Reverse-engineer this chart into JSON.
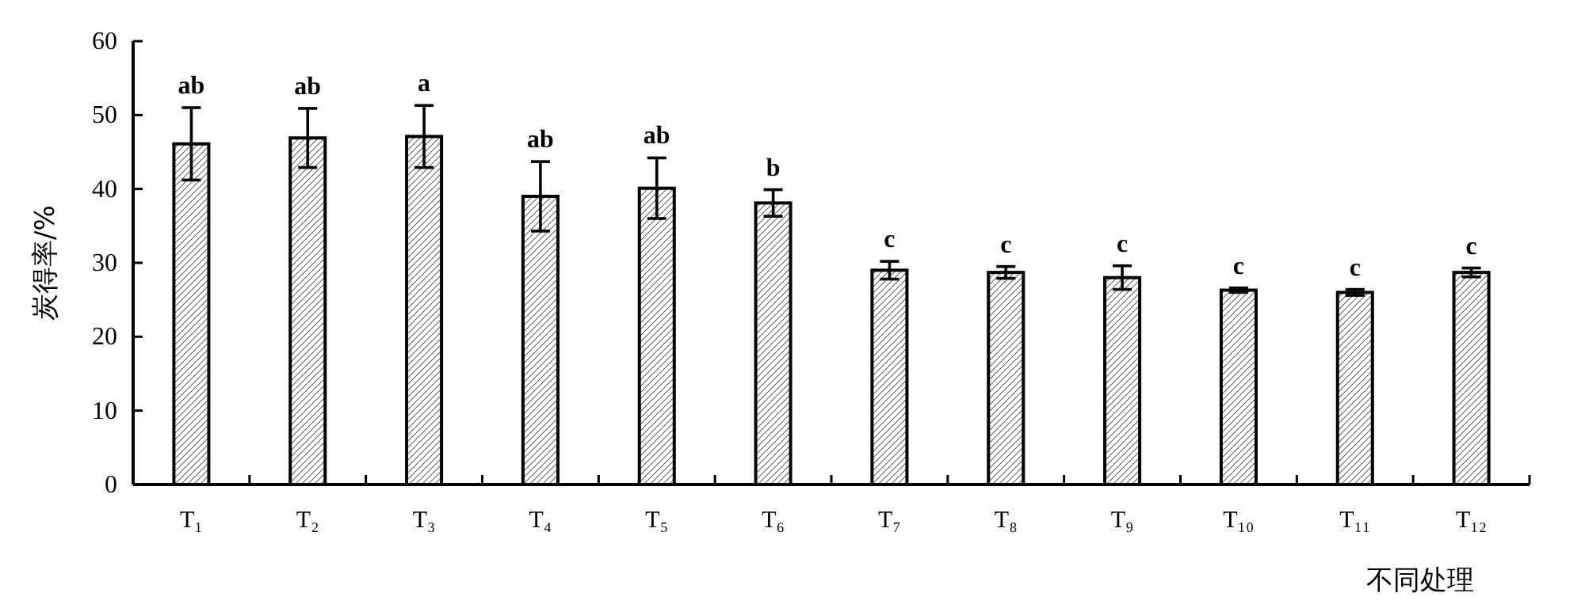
{
  "chart_data": {
    "type": "bar",
    "categories": [
      "T₁",
      "T₂",
      "T₃",
      "T₄",
      "T₅",
      "T₆",
      "T₇",
      "T₈",
      "T₉",
      "T₁₀",
      "T₁₁",
      "T₁₂"
    ],
    "values": [
      46.1,
      46.9,
      47.1,
      39.0,
      40.1,
      38.1,
      29.0,
      28.7,
      28.0,
      26.3,
      26.0,
      28.7
    ],
    "errors": [
      4.9,
      4.0,
      4.2,
      4.7,
      4.1,
      1.8,
      1.2,
      0.8,
      1.6,
      0.3,
      0.4,
      0.6
    ],
    "color": "#000000",
    "ylabel": "炭得率/%",
    "xlabel": "不同处理",
    "ylim": [
      0,
      60
    ],
    "yticks": [
      0,
      10,
      20,
      30,
      40,
      50,
      60
    ],
    "grid": false,
    "annotations": [
      {
        "text": "ab",
        "x": "T₁",
        "y": 51.0
      },
      {
        "text": "ab",
        "x": "T₂",
        "y": 50.9
      },
      {
        "text": "a",
        "x": "T₃",
        "y": 51.3
      },
      {
        "text": "ab",
        "x": "T₄",
        "y": 43.7
      },
      {
        "text": "ab",
        "x": "T₅",
        "y": 44.2
      },
      {
        "text": "b",
        "x": "T₆",
        "y": 39.9
      },
      {
        "text": "c",
        "x": "T₇",
        "y": 30.2
      },
      {
        "text": "c",
        "x": "T₈",
        "y": 29.5
      },
      {
        "text": "c",
        "x": "T₉",
        "y": 29.6
      },
      {
        "text": "c",
        "x": "T₁₀",
        "y": 26.6
      },
      {
        "text": "c",
        "x": "T₁₁",
        "y": 26.4
      },
      {
        "text": "c",
        "x": "T₁₂",
        "y": 29.3
      }
    ]
  }
}
